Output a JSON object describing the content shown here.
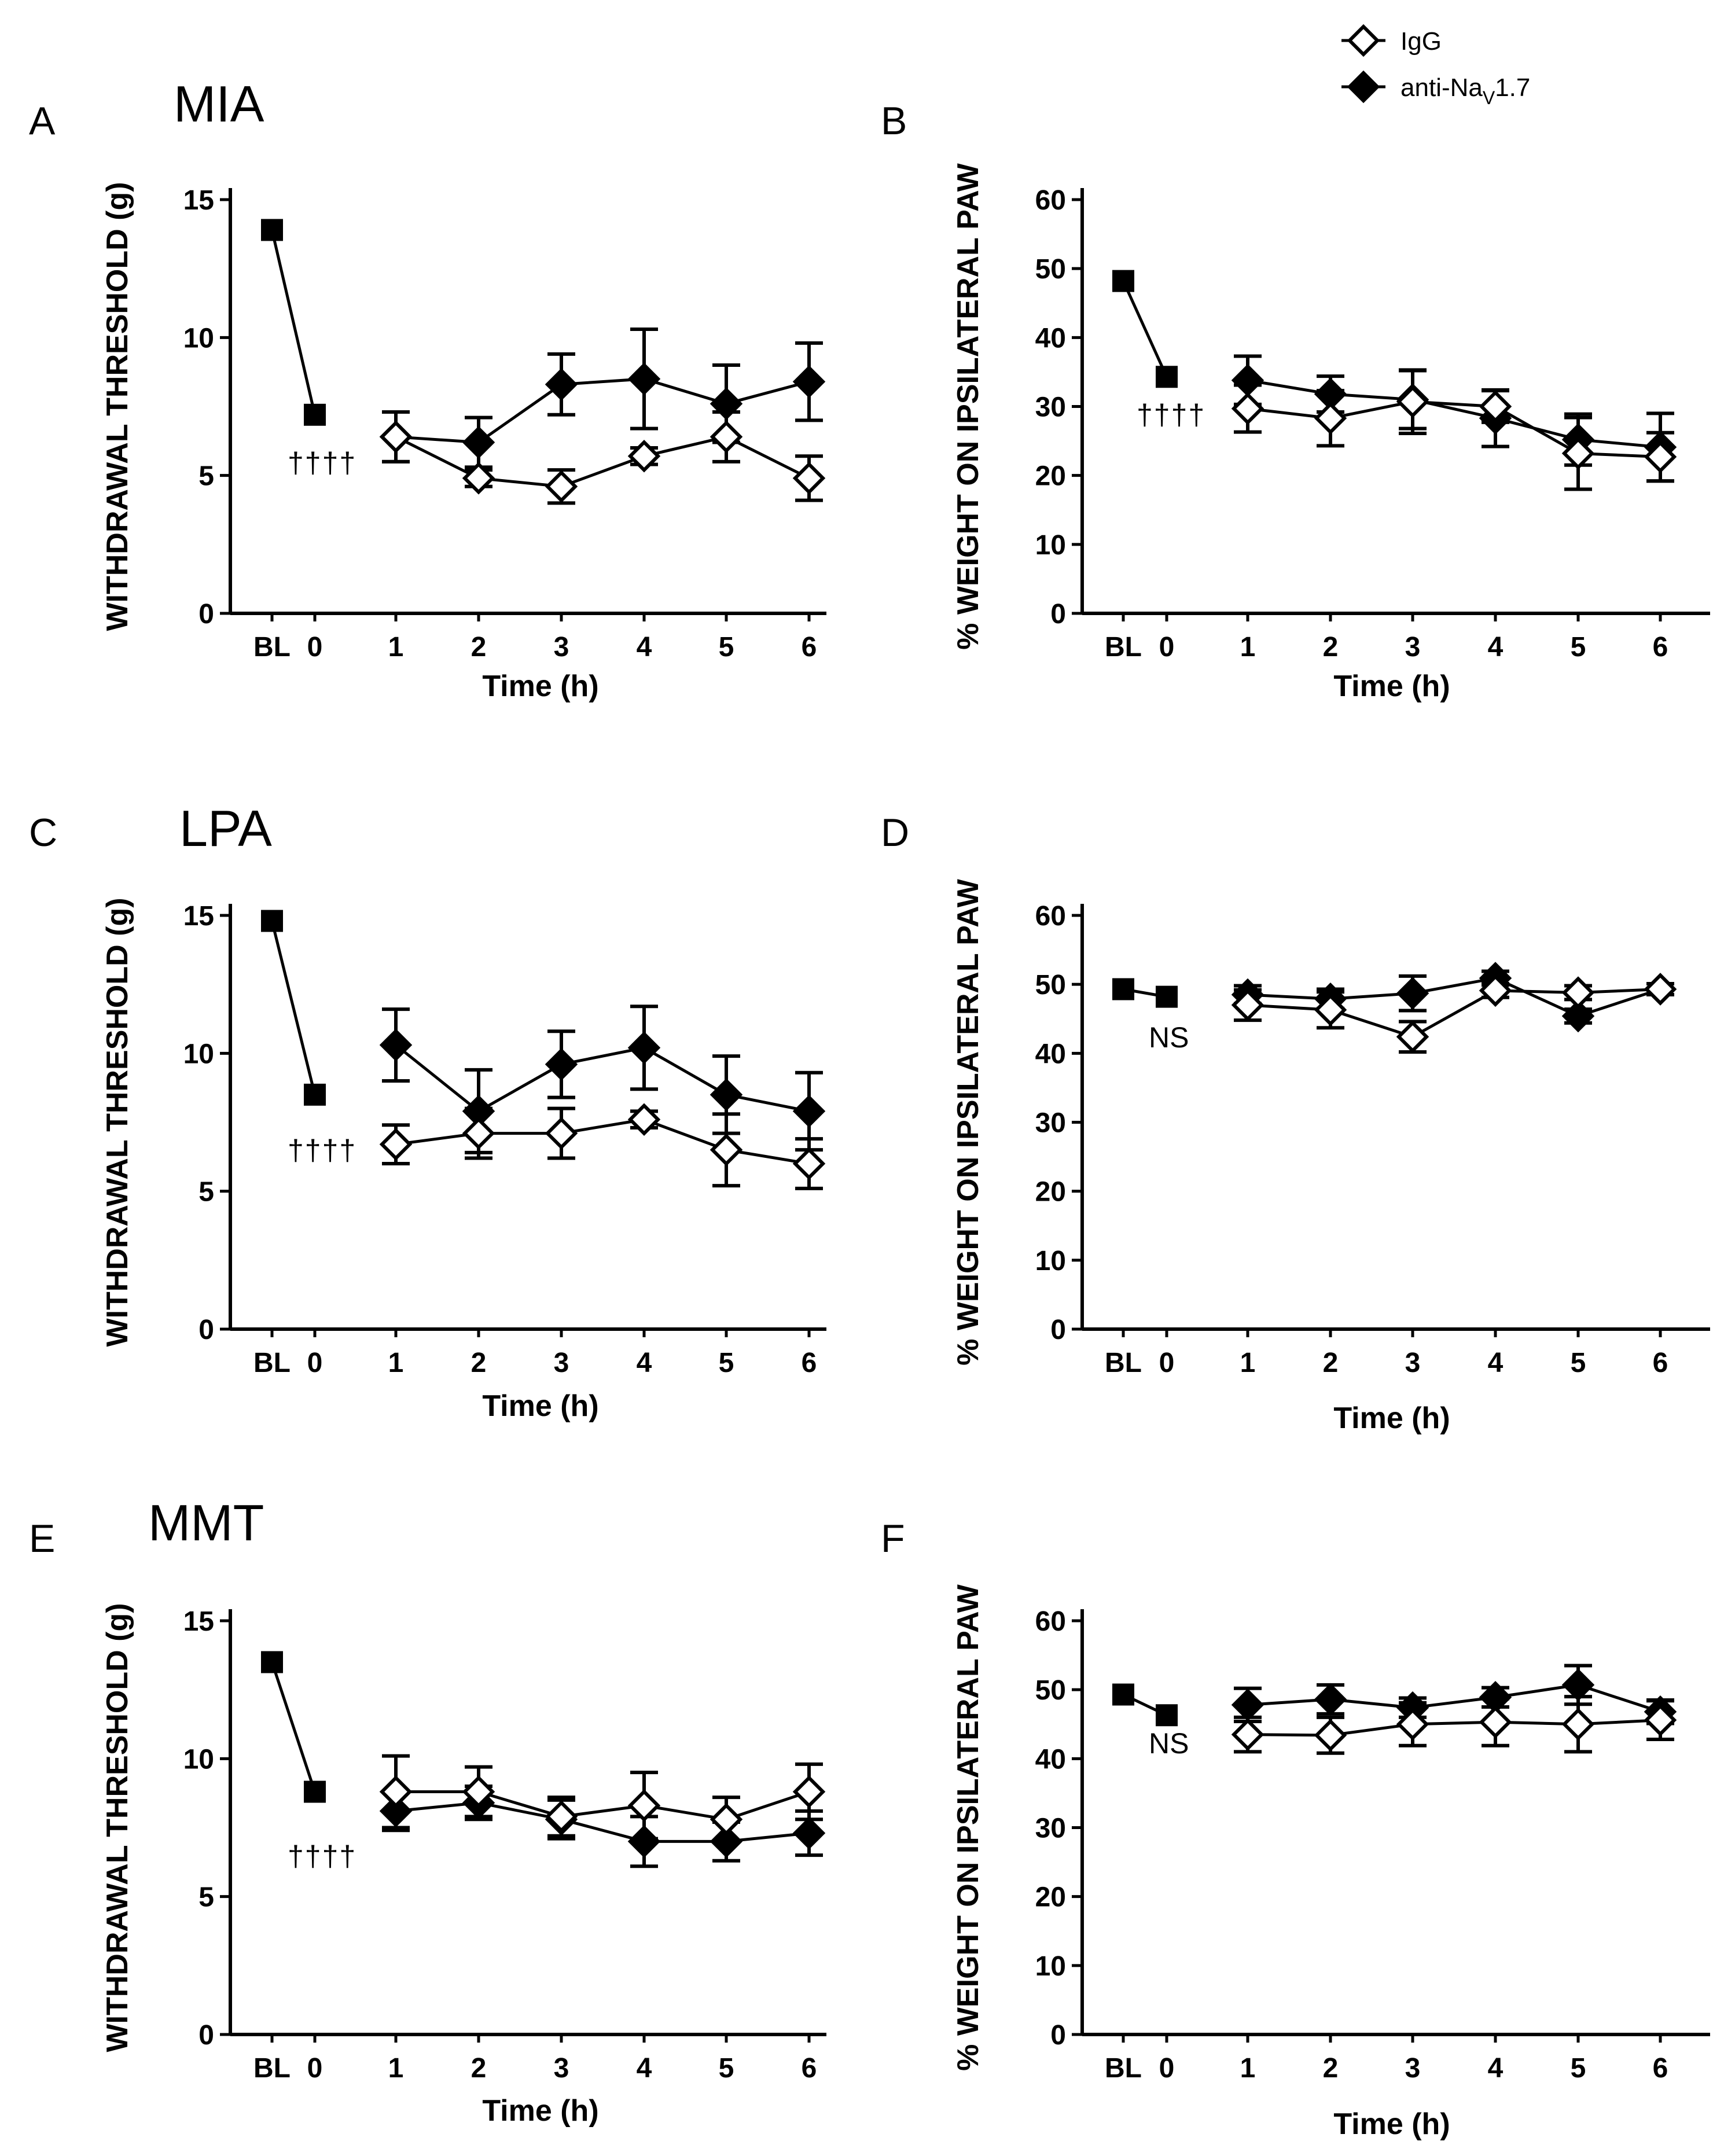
{
  "legend": {
    "entries": [
      {
        "label": "IgG",
        "marker": "open-diamond"
      },
      {
        "label": "anti-Na",
        "sub": "V",
        "suffix": "1.7",
        "marker": "filled-diamond"
      }
    ]
  },
  "x_categories": [
    "BL",
    "0",
    "1",
    "2",
    "3",
    "4",
    "5",
    "6"
  ],
  "chart_data": [
    {
      "id": "A",
      "type": "line",
      "panel_label": "A",
      "title": "MIA",
      "xlabel": "Time (h)",
      "ylabel": "WITHDRAWAL THRESHOLD (g)",
      "ylim": [
        0,
        15
      ],
      "yticks": [
        0,
        5,
        10,
        15
      ],
      "pre": {
        "values": [
          13.9,
          7.2
        ],
        "annotation": "††††"
      },
      "series": [
        {
          "name": "IgG",
          "values": [
            6.4,
            4.9,
            4.6,
            5.7,
            6.4,
            4.9
          ],
          "err": [
            0.9,
            0.3,
            0.6,
            0.3,
            0.9,
            0.8
          ]
        },
        {
          "name": "anti-NaV1.7",
          "values": [
            6.4,
            6.2,
            8.3,
            8.5,
            7.6,
            8.4
          ],
          "err": [
            0.9,
            0.9,
            1.1,
            1.8,
            1.4,
            1.4
          ]
        }
      ]
    },
    {
      "id": "B",
      "type": "line",
      "panel_label": "B",
      "title": "",
      "xlabel": "Time (h)",
      "ylabel": "% WEIGHT ON IPSILATERAL PAW",
      "ylim": [
        0,
        60
      ],
      "yticks": [
        0,
        10,
        20,
        30,
        40,
        50,
        60
      ],
      "pre": {
        "values": [
          48.2,
          34.3
        ],
        "annotation": "††††"
      },
      "series": [
        {
          "name": "IgG",
          "values": [
            29.7,
            28.3,
            30.7,
            30.0,
            23.2,
            22.7
          ],
          "err": [
            3.4,
            4.0,
            4.6,
            2.3,
            5.2,
            3.5
          ]
        },
        {
          "name": "anti-NaV1.7",
          "values": [
            33.8,
            31.8,
            31.0,
            28.3,
            25.2,
            24.1
          ],
          "err": [
            3.5,
            2.6,
            4.2,
            4.1,
            3.7,
            4.9
          ]
        }
      ]
    },
    {
      "id": "C",
      "type": "line",
      "panel_label": "C",
      "title": "LPA",
      "xlabel": "Time (h)",
      "ylabel": "WITHDRAWAL THRESHOLD (g)",
      "ylim": [
        0,
        15
      ],
      "yticks": [
        0,
        5,
        10,
        15
      ],
      "pre": {
        "values": [
          14.8,
          8.5
        ],
        "annotation": "††††"
      },
      "series": [
        {
          "name": "IgG",
          "values": [
            6.7,
            7.1,
            7.1,
            7.6,
            6.5,
            6.0
          ],
          "err": [
            0.7,
            0.9,
            0.9,
            0.3,
            1.3,
            0.9
          ]
        },
        {
          "name": "anti-NaV1.7",
          "values": [
            10.3,
            7.9,
            9.6,
            10.2,
            8.5,
            7.9
          ],
          "err": [
            1.3,
            1.5,
            1.2,
            1.5,
            1.4,
            1.4
          ]
        }
      ]
    },
    {
      "id": "D",
      "type": "line",
      "panel_label": "D",
      "title": "",
      "xlabel": "Time (h)",
      "ylabel": "% WEIGHT ON IPSILATERAL PAW",
      "ylim": [
        0,
        60
      ],
      "yticks": [
        0,
        10,
        20,
        30,
        40,
        50,
        60
      ],
      "pre": {
        "values": [
          49.3,
          48.2
        ],
        "annotation": "NS"
      },
      "series": [
        {
          "name": "IgG",
          "values": [
            47.0,
            46.3,
            42.4,
            49.1,
            48.8,
            49.3
          ],
          "err": [
            2.2,
            2.6,
            2.2,
            1.0,
            1.0,
            0.8
          ]
        },
        {
          "name": "anti-NaV1.7",
          "values": [
            48.5,
            47.9,
            48.7,
            50.9,
            45.4,
            49.3
          ],
          "err": [
            1.3,
            1.4,
            2.5,
            1.0,
            1.0,
            0.8
          ]
        }
      ]
    },
    {
      "id": "E",
      "type": "line",
      "panel_label": "E",
      "title": "MMT",
      "xlabel": "Time (h)",
      "ylabel": "WITHDRAWAL THRESHOLD (g)",
      "ylim": [
        0,
        15
      ],
      "yticks": [
        0,
        5,
        10,
        15
      ],
      "pre": {
        "values": [
          13.5,
          8.8
        ],
        "annotation": "††††"
      },
      "series": [
        {
          "name": "IgG",
          "values": [
            8.8,
            8.8,
            7.9,
            8.3,
            7.8,
            8.8
          ],
          "err": [
            1.3,
            0.9,
            0.7,
            1.2,
            0.8,
            1.0
          ]
        },
        {
          "name": "anti-NaV1.7",
          "values": [
            8.1,
            8.4,
            7.8,
            7.0,
            7.0,
            7.3
          ],
          "err": [
            0.7,
            0.6,
            0.7,
            0.9,
            0.7,
            0.8
          ]
        }
      ]
    },
    {
      "id": "F",
      "type": "line",
      "panel_label": "F",
      "title": "",
      "xlabel": "Time (h)",
      "ylabel": "% WEIGHT ON IPSILATERAL PAW",
      "ylim": [
        0,
        60
      ],
      "yticks": [
        0,
        10,
        20,
        30,
        40,
        50,
        60
      ],
      "pre": {
        "values": [
          49.3,
          46.3
        ],
        "annotation": "NS"
      },
      "series": [
        {
          "name": "IgG",
          "values": [
            43.5,
            43.4,
            45.0,
            45.3,
            45.0,
            45.6
          ],
          "err": [
            2.5,
            2.6,
            3.1,
            3.4,
            4.0,
            2.8
          ]
        },
        {
          "name": "anti-NaV1.7",
          "values": [
            47.8,
            48.6,
            47.4,
            48.9,
            50.7,
            46.8
          ],
          "err": [
            2.4,
            2.1,
            1.4,
            1.4,
            2.8,
            1.7
          ]
        }
      ]
    }
  ]
}
